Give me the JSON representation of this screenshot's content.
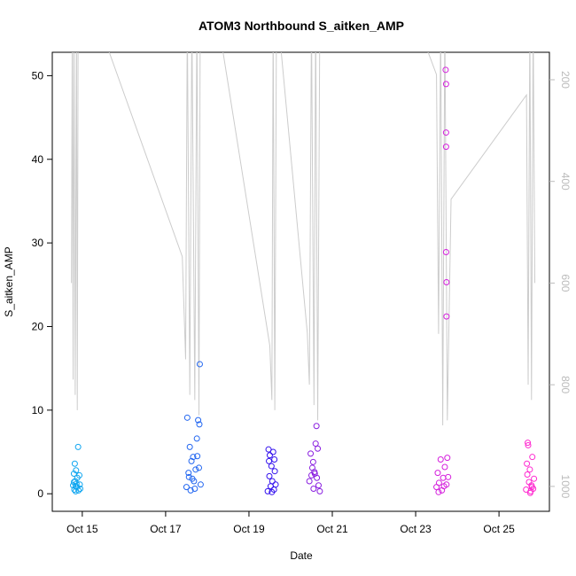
{
  "chart_data": {
    "type": "scatter",
    "title": "ATOM3 Northbound S_aitken_AMP",
    "xlabel": "Date",
    "ylabel": "S_aitken_AMP",
    "xlim": [
      14.28,
      26.21
    ],
    "ylim": [
      -2.1,
      52.8
    ],
    "y2lim": [
      1049,
      146
    ],
    "y2reversed": true,
    "xticks": [
      {
        "value": 15,
        "label": "Oct 15"
      },
      {
        "value": 17,
        "label": "Oct 17"
      },
      {
        "value": 19,
        "label": "Oct 19"
      },
      {
        "value": 21,
        "label": "Oct 21"
      },
      {
        "value": 23,
        "label": "Oct 23"
      },
      {
        "value": 25,
        "label": "Oct 25"
      }
    ],
    "yticks": [
      0,
      10,
      20,
      30,
      40,
      50
    ],
    "y2ticks": [
      200,
      400,
      600,
      800,
      1000
    ],
    "series": [
      {
        "kind": "line",
        "axis": "y2",
        "color": "#cccccc",
        "x": [
          14.74,
          14.76,
          14.78,
          14.8,
          14.83,
          14.86,
          14.88,
          14.9,
          15.36,
          17.4,
          17.48,
          17.52,
          17.58,
          17.63,
          17.7,
          17.75,
          17.8,
          17.83,
          18.25,
          19.5,
          19.55,
          19.58,
          19.62,
          19.66,
          19.7,
          20.4,
          20.45,
          20.5,
          20.56,
          20.6,
          20.65,
          20.7,
          21.5,
          23.0,
          23.5,
          23.55,
          23.6,
          23.65,
          23.7,
          23.76,
          23.85,
          25.66,
          25.7,
          25.74,
          25.78,
          25.82,
          25.86
        ],
        "values": [
          600,
          80,
          790,
          80,
          820,
          80,
          850,
          80,
          80,
          548,
          750,
          80,
          820,
          80,
          830,
          80,
          860,
          80,
          80,
          723,
          830,
          80,
          850,
          80,
          80,
          698,
          800,
          80,
          840,
          80,
          870,
          80,
          80,
          80,
          190,
          700,
          80,
          880,
          80,
          870,
          435,
          230,
          800,
          80,
          830,
          80,
          600
        ]
      },
      {
        "color": "#10a6f0",
        "x": [
          14.78,
          14.8,
          14.81,
          14.82,
          14.83,
          14.84,
          14.85,
          14.86,
          14.87,
          14.88,
          14.9,
          14.91,
          14.93,
          14.94,
          14.95,
          14.8,
          14.84
        ],
        "values": [
          1.0,
          2.4,
          0.5,
          3.6,
          1.5,
          0.3,
          2.8,
          1.2,
          0.8,
          1.9,
          5.6,
          0.4,
          2.2,
          1.1,
          0.6,
          1.4,
          0.9
        ]
      },
      {
        "color": "#2266f0",
        "x": [
          17.5,
          17.52,
          17.55,
          17.58,
          17.6,
          17.62,
          17.64,
          17.66,
          17.7,
          17.72,
          17.75,
          17.78,
          17.8,
          17.81,
          17.82,
          17.84,
          17.56,
          17.68,
          17.76
        ],
        "values": [
          0.8,
          9.1,
          2.5,
          5.6,
          0.4,
          3.9,
          1.8,
          4.4,
          0.6,
          2.9,
          6.6,
          8.8,
          3.1,
          8.3,
          15.5,
          1.1,
          2.0,
          1.5,
          4.5
        ]
      },
      {
        "color": "#3311ee",
        "x": [
          19.45,
          19.47,
          19.49,
          19.5,
          19.52,
          19.54,
          19.56,
          19.58,
          19.6,
          19.62,
          19.64,
          19.48,
          19.55,
          19.61
        ],
        "values": [
          0.3,
          5.3,
          2.1,
          4.6,
          0.9,
          3.3,
          1.5,
          5.0,
          0.5,
          2.7,
          1.1,
          3.9,
          0.2,
          4.1
        ]
      },
      {
        "color": "#8a1fe0",
        "x": [
          20.45,
          20.48,
          20.5,
          20.52,
          20.55,
          20.57,
          20.6,
          20.62,
          20.65,
          20.67,
          20.7,
          20.54,
          20.63,
          20.58
        ],
        "values": [
          1.5,
          4.8,
          2.2,
          3.1,
          0.6,
          2.6,
          6.0,
          8.1,
          5.4,
          1.0,
          0.3,
          3.8,
          1.9,
          2.4
        ]
      },
      {
        "color": "#d51fdd",
        "x": [
          23.5,
          23.53,
          23.56,
          23.6,
          23.63,
          23.66,
          23.7,
          23.72,
          23.73,
          23.73,
          23.73,
          23.73,
          23.74,
          23.74,
          23.74,
          23.76,
          23.78,
          23.55,
          23.68
        ],
        "values": [
          0.8,
          2.5,
          1.3,
          4.1,
          0.4,
          1.9,
          3.2,
          50.7,
          49.0,
          43.2,
          41.5,
          28.9,
          25.3,
          21.2,
          1.1,
          4.3,
          2.0,
          0.2,
          0.9
        ]
      },
      {
        "color": "#ff2ad0",
        "x": [
          25.65,
          25.67,
          25.69,
          25.7,
          25.72,
          25.74,
          25.76,
          25.78,
          25.8,
          25.82,
          25.84,
          25.68,
          25.75,
          25.79
        ],
        "values": [
          0.5,
          3.6,
          6.1,
          5.8,
          1.4,
          2.9,
          0.3,
          1.0,
          4.4,
          0.6,
          1.8,
          2.3,
          0.1,
          0.8
        ]
      }
    ]
  }
}
